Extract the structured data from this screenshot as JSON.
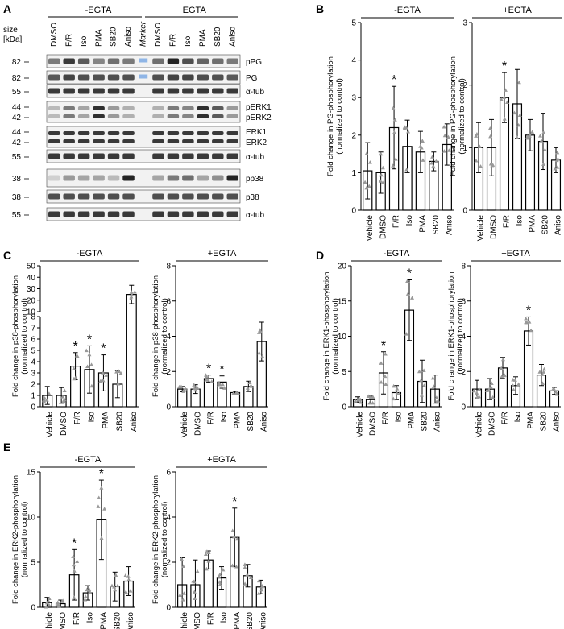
{
  "figure": {
    "panel_letters": [
      "A",
      "B",
      "C",
      "D",
      "E"
    ],
    "blot": {
      "size_label": "size",
      "kda_label": "[kDa]",
      "group_left": "-EGTA",
      "group_right": "+EGTA",
      "lanes": [
        "DMSO",
        "F/R",
        "Iso",
        "PMA",
        "SB20",
        "Aniso",
        "Marker",
        "DMSO",
        "F/R",
        "Iso",
        "PMA",
        "SB20",
        "Aniso"
      ],
      "rows": [
        {
          "sizes": [
            "82"
          ],
          "labels": [
            "pPG"
          ]
        },
        {
          "sizes": [
            "82"
          ],
          "labels": [
            "PG"
          ]
        },
        {
          "sizes": [
            "55"
          ],
          "labels": [
            "α-tub"
          ]
        },
        {
          "sizes": [
            "44",
            "42"
          ],
          "labels": [
            "pERK1",
            "pERK2"
          ]
        },
        {
          "sizes": [
            "44",
            "42"
          ],
          "labels": [
            "ERK1",
            "ERK2"
          ]
        },
        {
          "sizes": [
            "55"
          ],
          "labels": [
            "α-tub"
          ]
        },
        {
          "sizes": [
            "38"
          ],
          "labels": [
            "pp38"
          ]
        },
        {
          "sizes": [
            "38"
          ],
          "labels": [
            "p38"
          ]
        },
        {
          "sizes": [
            "55"
          ],
          "labels": [
            "α-tub"
          ]
        }
      ]
    }
  },
  "chart_data": [
    {
      "panel": "B",
      "type": "bar",
      "title": "-EGTA",
      "ylabel": "Fold change in PG-phosphorylation\n(normalized to control)",
      "categories": [
        "Vehicle",
        "DMSO",
        "F/R",
        "Iso",
        "PMA",
        "SB20",
        "Aniso"
      ],
      "values": [
        1.05,
        1.0,
        2.2,
        1.7,
        1.55,
        1.3,
        1.75
      ],
      "errors": [
        0.75,
        0.55,
        1.1,
        0.7,
        0.55,
        0.25,
        0.55
      ],
      "significant": [
        false,
        false,
        true,
        false,
        false,
        false,
        false
      ],
      "ylim": [
        0,
        5
      ],
      "yticks": [
        0,
        1,
        2,
        3,
        4,
        5
      ]
    },
    {
      "panel": "B",
      "type": "bar",
      "title": "+EGTA",
      "ylabel": "Fold change in PG-phosphorylation\n(normalized to control)",
      "categories": [
        "Vehicle",
        "DMSO",
        "F/R",
        "Iso",
        "PMA",
        "SB20",
        "Aniso"
      ],
      "values": [
        1.0,
        1.0,
        1.8,
        1.7,
        1.2,
        1.1,
        0.8
      ],
      "errors": [
        0.4,
        0.45,
        0.4,
        0.55,
        0.25,
        0.45,
        0.2
      ],
      "significant": [
        false,
        false,
        true,
        false,
        false,
        false,
        false
      ],
      "ylim": [
        0,
        3
      ],
      "yticks": [
        0,
        1,
        2,
        3
      ]
    },
    {
      "panel": "C",
      "type": "bar",
      "title": "-EGTA",
      "ylabel": "Fold change in p38-phosphorylation\n(normalized to control)",
      "categories": [
        "Vehicle",
        "DMSO",
        "F/R",
        "Iso",
        "PMA",
        "SB20",
        "Aniso"
      ],
      "values": [
        1.0,
        1.0,
        3.6,
        3.3,
        3.0,
        2.0,
        25.0
      ],
      "errors": [
        0.8,
        0.7,
        1.2,
        2.1,
        1.6,
        1.2,
        8.0
      ],
      "significant": [
        false,
        false,
        true,
        true,
        true,
        false,
        false
      ],
      "ylim": [
        0,
        50
      ],
      "axis_break": [
        8,
        10
      ],
      "yticks": [
        0,
        1,
        2,
        3,
        4,
        5,
        6,
        7,
        8,
        10,
        20,
        30,
        40,
        50
      ]
    },
    {
      "panel": "C",
      "type": "bar",
      "title": "+EGTA",
      "ylabel": "Fold change in p38-phosphorylation\n(normalized to control)",
      "categories": [
        "Vehicle",
        "DMSO",
        "F/R",
        "Iso",
        "PMA",
        "SB20",
        "Aniso"
      ],
      "values": [
        1.0,
        1.0,
        1.6,
        1.4,
        0.8,
        1.15,
        3.7
      ],
      "errors": [
        0.15,
        0.25,
        0.2,
        0.35,
        0.05,
        0.3,
        1.1
      ],
      "significant": [
        false,
        false,
        true,
        true,
        false,
        false,
        false
      ],
      "ylim": [
        0,
        8
      ],
      "yticks": [
        0,
        2,
        4,
        6,
        8
      ]
    },
    {
      "panel": "D",
      "type": "bar",
      "title": "-EGTA",
      "ylabel": "Fold change in ERK1-phosphorylation\n(normalized to control)",
      "categories": [
        "Vehicle",
        "DMSO",
        "F/R",
        "Iso",
        "PMA",
        "SB20",
        "Aniso"
      ],
      "values": [
        1.0,
        1.0,
        4.8,
        2.0,
        13.7,
        3.6,
        2.5
      ],
      "errors": [
        0.4,
        0.5,
        3.0,
        1.0,
        4.3,
        3.0,
        2.0
      ],
      "significant": [
        false,
        false,
        true,
        false,
        true,
        false,
        false
      ],
      "ylim": [
        0,
        20
      ],
      "yticks": [
        0,
        5,
        10,
        15,
        20
      ]
    },
    {
      "panel": "D",
      "type": "bar",
      "title": "+EGTA",
      "ylabel": "Fold change in ERK1-phosphorylation\n(normalized to control)",
      "categories": [
        "Vehicle",
        "DMSO",
        "F/R",
        "Iso",
        "PMA",
        "SB20",
        "Aniso"
      ],
      "values": [
        1.0,
        1.0,
        2.2,
        1.2,
        4.3,
        1.8,
        0.9
      ],
      "errors": [
        0.5,
        0.6,
        0.6,
        0.5,
        0.8,
        0.6,
        0.2
      ],
      "significant": [
        false,
        false,
        false,
        false,
        true,
        false,
        false
      ],
      "ylim": [
        0,
        8
      ],
      "yticks": [
        0,
        2,
        4,
        6,
        8
      ]
    },
    {
      "panel": "E",
      "type": "bar",
      "title": "-EGTA",
      "ylabel": "Fold change in ERK2-phosphorylation\n(normalized to control)",
      "categories": [
        "Vehicle",
        "DMSO",
        "F/R",
        "Iso",
        "PMA",
        "SB20",
        "Aniso"
      ],
      "values": [
        0.5,
        0.4,
        3.6,
        1.6,
        9.7,
        2.3,
        2.9
      ],
      "errors": [
        0.6,
        0.4,
        2.8,
        0.8,
        4.4,
        1.6,
        1.6
      ],
      "significant": [
        false,
        false,
        true,
        false,
        true,
        false,
        false
      ],
      "ylim": [
        0,
        15
      ],
      "yticks": [
        0,
        5,
        10,
        15
      ]
    },
    {
      "panel": "E",
      "type": "bar",
      "title": "+EGTA",
      "ylabel": "Fold change in ERK2-phosphorylation\n(normalized to control)",
      "categories": [
        "Vehicle",
        "DMSO",
        "F/R",
        "Iso",
        "PMA",
        "SB20",
        "Aniso"
      ],
      "values": [
        1.0,
        1.0,
        2.1,
        1.3,
        3.1,
        1.4,
        0.9
      ],
      "errors": [
        1.2,
        1.1,
        0.4,
        0.5,
        1.3,
        0.5,
        0.3
      ],
      "significant": [
        false,
        false,
        false,
        false,
        true,
        false,
        false
      ],
      "ylim": [
        0,
        6
      ],
      "yticks": [
        0,
        2,
        4,
        6
      ]
    }
  ],
  "colors": {
    "axis": "#000000",
    "bar_fill": "#ffffff",
    "point": "#999999",
    "marker_band": "#8fb5e6"
  }
}
